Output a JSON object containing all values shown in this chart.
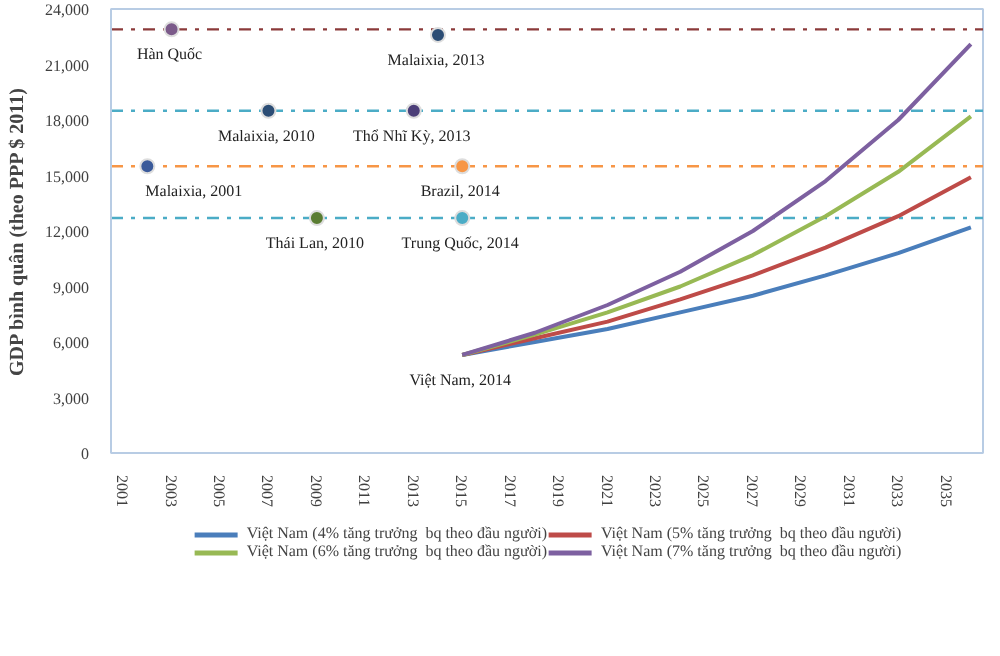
{
  "chart_data": {
    "type": "line",
    "ylabel": "GDP bình quân (theo PPP $ 2011)",
    "xlim": [
      2000.5,
      2036.5
    ],
    "xticks": [
      2001,
      2003,
      2005,
      2007,
      2009,
      2011,
      2013,
      2015,
      2017,
      2019,
      2021,
      2023,
      2025,
      2027,
      2029,
      2031,
      2033,
      2035
    ],
    "ylim": [
      0,
      24000
    ],
    "yticks": [
      {
        "value": 0,
        "label": "0"
      },
      {
        "value": 3000,
        "label": "3,000"
      },
      {
        "value": 6000,
        "label": "6,000"
      },
      {
        "value": 9000,
        "label": "9,000"
      },
      {
        "value": 12000,
        "label": "12,000"
      },
      {
        "value": 15000,
        "label": "15,000"
      },
      {
        "value": 18000,
        "label": "18,000"
      },
      {
        "value": 21000,
        "label": "21,000"
      },
      {
        "value": 24000,
        "label": "24,000"
      }
    ],
    "grid": false,
    "legend": "bottom",
    "series": [
      {
        "name": "Việt Nam (4% tăng trưởng  bq theo đầu người)",
        "color": "#4a7ebb",
        "x": [
          2015,
          2018,
          2021,
          2024,
          2027,
          2030,
          2033,
          2036
        ],
        "values": [
          5300,
          6000,
          6700,
          7600,
          8500,
          9600,
          10800,
          12200
        ]
      },
      {
        "name": "Việt Nam (5% tăng trưởng  bq theo đầu người)",
        "color": "#be4b48",
        "x": [
          2015,
          2018,
          2021,
          2024,
          2027,
          2030,
          2033,
          2036
        ],
        "values": [
          5300,
          6200,
          7100,
          8300,
          9600,
          11100,
          12800,
          14900
        ]
      },
      {
        "name": "Việt Nam (6% tăng trưởng  bq theo đầu người)",
        "color": "#98b954",
        "x": [
          2015,
          2018,
          2021,
          2024,
          2027,
          2030,
          2033,
          2036
        ],
        "values": [
          5300,
          6400,
          7600,
          9000,
          10700,
          12800,
          15200,
          18200
        ]
      },
      {
        "name": "Việt Nam (7% tăng trưởng  bq theo đầu người)",
        "color": "#7d60a0",
        "x": [
          2015,
          2018,
          2021,
          2024,
          2027,
          2030,
          2033,
          2036
        ],
        "values": [
          5300,
          6500,
          8000,
          9800,
          12000,
          14700,
          18000,
          22100
        ]
      },
      {
        "type": "scatter",
        "marker": "circle",
        "x": [
          2003,
          2014,
          2007,
          2013,
          2002,
          2015,
          2009,
          2015
        ],
        "values": [
          22900,
          22600,
          18500,
          18500,
          15500,
          15500,
          12700,
          12700
        ],
        "colors": [
          "#7b5a8a",
          "#2c4d75",
          "#2c4d75",
          "#4b3e78",
          "#3a5a9a",
          "#f79646",
          "#5a7d32",
          "#4bacc6"
        ]
      }
    ],
    "ref_lines": [
      {
        "axis": "y",
        "value": 22900,
        "color": "#8b3a3a",
        "line_style": "dashdot"
      },
      {
        "axis": "y",
        "value": 18500,
        "color": "#4bacc6",
        "line_style": "dashdot"
      },
      {
        "axis": "y",
        "value": 15500,
        "color": "#f79646",
        "line_style": "dashdot"
      },
      {
        "axis": "y",
        "value": 12700,
        "color": "#4bacc6",
        "line_style": "dashdot"
      }
    ],
    "annotations": [
      {
        "text": "Hàn Quốc",
        "x": 2003,
        "y": 22900
      },
      {
        "text": "Malaixia, 2013",
        "x": 2014,
        "y": 22600
      },
      {
        "text": "Malaixia, 2010",
        "x": 2007,
        "y": 18500
      },
      {
        "text": "Thổ Nhĩ Kỳ, 2013",
        "x": 2013,
        "y": 18500
      },
      {
        "text": "Malaixia, 2001",
        "x": 2002,
        "y": 15500
      },
      {
        "text": "Brazil, 2014",
        "x": 2015,
        "y": 15500
      },
      {
        "text": "Thái Lan, 2010",
        "x": 2009,
        "y": 12700
      },
      {
        "text": "Trung Quốc, 2014",
        "x": 2015,
        "y": 12700
      },
      {
        "text": "Việt Nam, 2014",
        "x": 2015,
        "y": 5300
      }
    ]
  }
}
